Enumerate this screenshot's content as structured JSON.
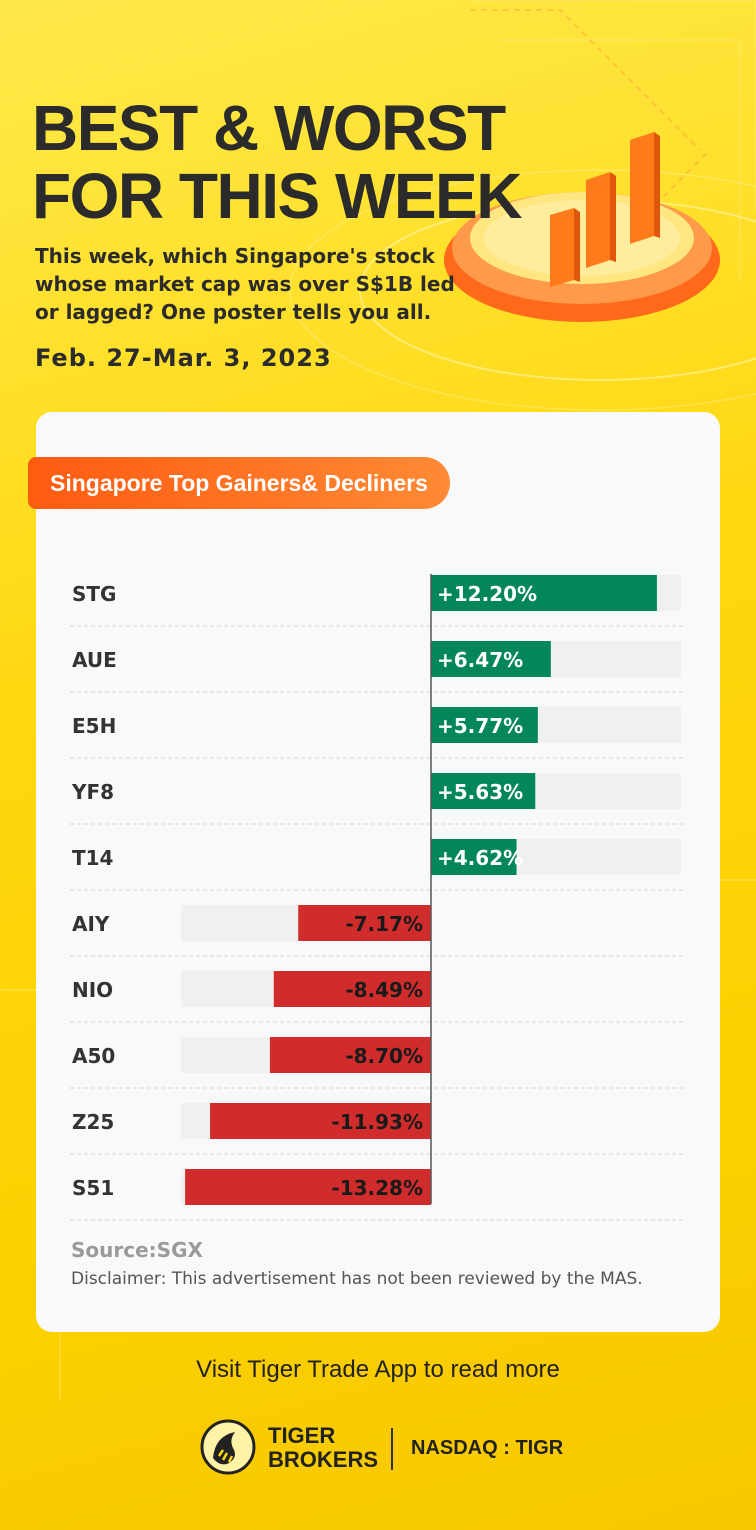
{
  "header": {
    "title_line1": "BEST & WORST",
    "title_line2": "FOR THIS WEEK",
    "subtitle": "This week, which Singapore's stock whose market cap was over S$1B led or lagged? One poster tells you all.",
    "date_range": "Feb. 27-Mar. 3, 2023"
  },
  "card": {
    "section_label": "Singapore Top Gainers& Decliners",
    "source": "Source:SGX",
    "disclaimer": "Disclaimer: This advertisement has not been reviewed by the MAS."
  },
  "footer": {
    "cta": "Visit Tiger Trade App to read more",
    "brand_line1": "TIGER",
    "brand_line2": "BROKERS",
    "ticker": "NASDAQ : TIGR"
  },
  "colors": {
    "gain": "#03875a",
    "loss": "#d12c2c",
    "track": "#f0f0ee",
    "accent": "#ff6a1a"
  },
  "chart_data": {
    "type": "bar",
    "orientation": "horizontal",
    "title": "Singapore Top Gainers& Decliners",
    "categories": [
      "STG",
      "AUE",
      "E5H",
      "YF8",
      "T14",
      "AIY",
      "NIO",
      "A50",
      "Z25",
      "S51"
    ],
    "values": [
      12.2,
      6.47,
      5.77,
      5.63,
      4.62,
      -7.17,
      -8.49,
      -8.7,
      -11.93,
      -13.28
    ],
    "labels": [
      "+12.20%",
      "+6.47%",
      "+5.77%",
      "+5.63%",
      "+4.62%",
      "-7.17%",
      "-8.49%",
      "-8.70%",
      "-11.93%",
      "-13.28%"
    ],
    "unit": "%",
    "xlim": [
      -13.5,
      13.5
    ],
    "xlabel": "",
    "ylabel": ""
  }
}
